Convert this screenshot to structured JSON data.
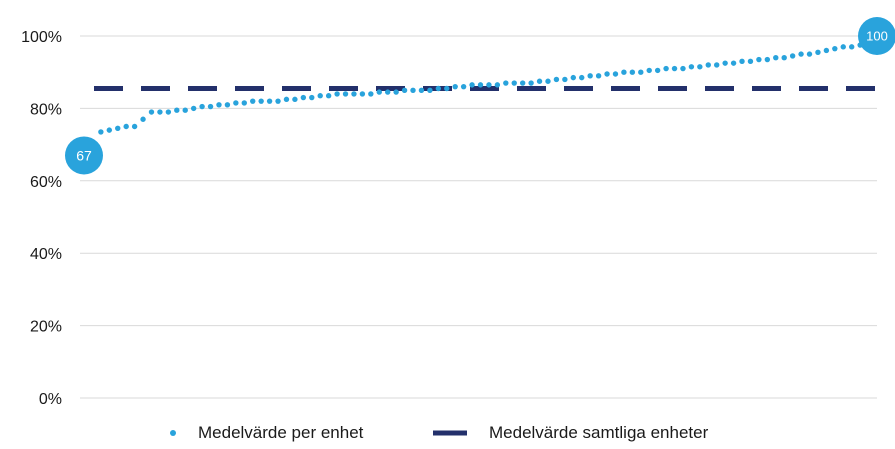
{
  "chart_data": {
    "type": "scatter",
    "title": "",
    "xlabel": "",
    "ylabel": "",
    "ylim": [
      0,
      100
    ],
    "y_ticks": [
      "0%",
      "20%",
      "40%",
      "60%",
      "80%",
      "100%"
    ],
    "y_tick_values": [
      0,
      20,
      40,
      60,
      80,
      100
    ],
    "grid": true,
    "legend_position": "bottom",
    "series": [
      {
        "name": "Medelvärde per enhet",
        "kind": "dots",
        "color": "#29a3dc",
        "values": [
          67,
          70.5,
          73.5,
          74,
          74.5,
          75,
          75,
          77,
          79,
          79,
          79,
          79.5,
          79.5,
          80,
          80.5,
          80.5,
          81,
          81,
          81.5,
          81.5,
          82,
          82,
          82,
          82,
          82.5,
          82.5,
          83,
          83,
          83.5,
          83.5,
          84,
          84,
          84,
          84,
          84,
          84.5,
          84.5,
          84.5,
          85,
          85,
          85,
          85,
          85.5,
          85.5,
          86,
          86,
          86.5,
          86.5,
          86.5,
          86.5,
          87,
          87,
          87,
          87,
          87.5,
          87.5,
          88,
          88,
          88.5,
          88.5,
          89,
          89,
          89.5,
          89.5,
          90,
          90,
          90,
          90.5,
          90.5,
          91,
          91,
          91,
          91.5,
          91.5,
          92,
          92,
          92.5,
          92.5,
          93,
          93,
          93.5,
          93.5,
          94,
          94,
          94.5,
          95,
          95,
          95.5,
          96,
          96.5,
          97,
          97,
          97.5,
          98,
          100
        ]
      },
      {
        "name": "Medelvärde samtliga enheter",
        "kind": "dashed-line",
        "color": "#23306b",
        "value": 85.5
      }
    ],
    "annotations": [
      {
        "label": "67",
        "target": "first-point"
      },
      {
        "label": "100",
        "target": "last-point"
      }
    ]
  }
}
